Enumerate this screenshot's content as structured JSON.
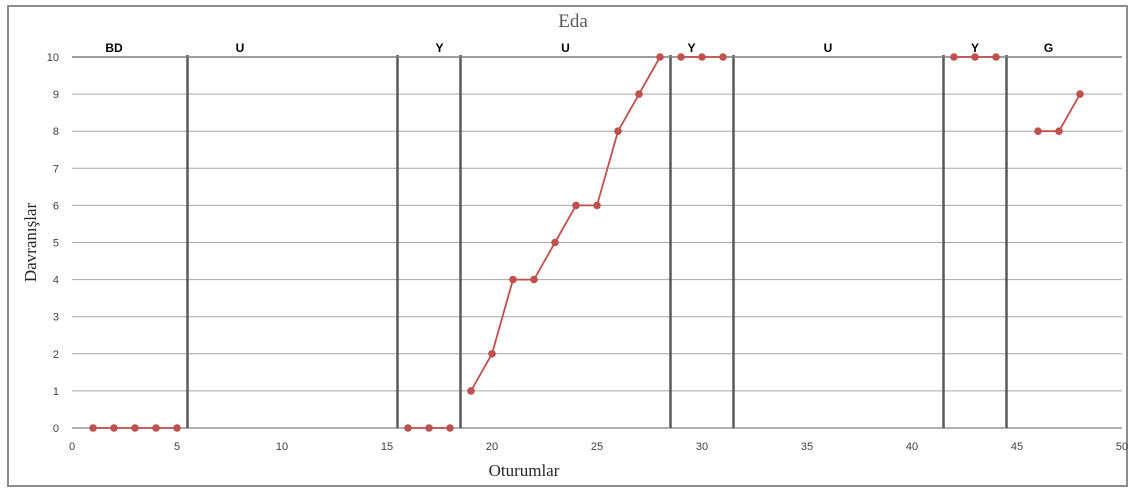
{
  "chart_data": {
    "type": "line",
    "title": "Eda",
    "xlabel": "Oturumlar",
    "ylabel": "Davranışlar",
    "xlim": [
      0,
      50
    ],
    "ylim": [
      0,
      10
    ],
    "x_ticks": [
      "0",
      "5",
      "10",
      "15",
      "20",
      "25",
      "30",
      "35",
      "40",
      "45",
      "50"
    ],
    "y_ticks": [
      "0",
      "1",
      "2",
      "3",
      "4",
      "5",
      "6",
      "7",
      "8",
      "9",
      "10"
    ],
    "grid": "horizontal",
    "series_color": "#c0504d",
    "phase_lines_x": [
      5.5,
      15.5,
      18.5,
      28.5,
      31.5,
      41.5,
      44.5
    ],
    "phase_labels": [
      {
        "label": "BD",
        "x": 2
      },
      {
        "label": "U",
        "x": 8
      },
      {
        "label": "Y",
        "x": 17.5
      },
      {
        "label": "U",
        "x": 23.5
      },
      {
        "label": "Y",
        "x": 29.5
      },
      {
        "label": "U",
        "x": 36
      },
      {
        "label": "Y",
        "x": 43
      },
      {
        "label": "G",
        "x": 46.5
      }
    ],
    "segments": [
      [
        [
          1,
          0
        ],
        [
          2,
          0
        ],
        [
          3,
          0
        ],
        [
          4,
          0
        ],
        [
          5,
          0
        ]
      ],
      [
        [
          16,
          0
        ],
        [
          17,
          0
        ],
        [
          18,
          0
        ]
      ],
      [
        [
          19,
          1
        ],
        [
          20,
          2
        ],
        [
          21,
          4
        ],
        [
          22,
          4
        ],
        [
          23,
          5
        ],
        [
          24,
          6
        ],
        [
          25,
          6
        ],
        [
          26,
          8
        ],
        [
          27,
          9
        ],
        [
          28,
          10
        ]
      ],
      [
        [
          29,
          10
        ],
        [
          30,
          10
        ],
        [
          31,
          10
        ]
      ],
      [
        [
          42,
          10
        ],
        [
          43,
          10
        ],
        [
          44,
          10
        ]
      ],
      [
        [
          46,
          8
        ],
        [
          47,
          8
        ],
        [
          48,
          9
        ]
      ]
    ]
  }
}
